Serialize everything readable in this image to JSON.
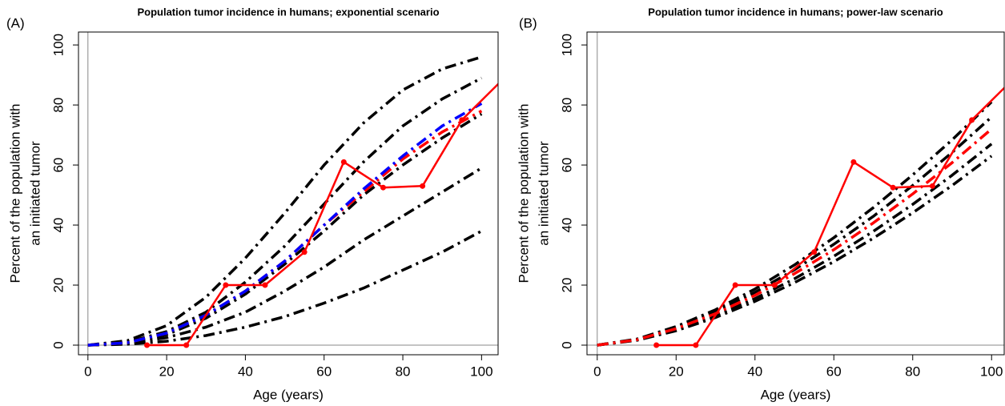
{
  "chart_data": [
    {
      "type": "line",
      "panel_label": "(A)",
      "title": "Population tumor incidence in humans; exponential scenario",
      "xlabel": "Age (years)",
      "ylabel": [
        "Percent of the population with",
        "an initiated tumor"
      ],
      "xlim": [
        -2.4,
        104.2
      ],
      "ylim": [
        -3.2,
        104.3
      ],
      "xticks": [
        0,
        20,
        40,
        60,
        80,
        100
      ],
      "yticks": [
        0,
        20,
        40,
        60,
        80,
        100
      ],
      "reference_lines": {
        "x": 0,
        "y": 0
      },
      "series": [
        {
          "color": "#000000",
          "linestyle": "dashdot",
          "x": [
            0,
            10,
            20,
            30,
            40,
            50,
            60,
            70,
            80,
            90,
            100
          ],
          "values": [
            0,
            1.5,
            6.5,
            16,
            29,
            44,
            60,
            74,
            85,
            92,
            96
          ]
        },
        {
          "color": "#000000",
          "linestyle": "dashdot",
          "x": [
            0,
            10,
            20,
            30,
            40,
            50,
            60,
            70,
            80,
            90,
            100
          ],
          "values": [
            0,
            1,
            4.5,
            11,
            21,
            33,
            47,
            61,
            73,
            82,
            89
          ]
        },
        {
          "color": "#000000",
          "linestyle": "dashdot",
          "x": [
            0,
            10,
            20,
            30,
            40,
            50,
            60,
            70,
            80,
            90,
            100
          ],
          "values": [
            0,
            0.8,
            3.5,
            9,
            17,
            27,
            38,
            50,
            60,
            69,
            77
          ]
        },
        {
          "color": "#000000",
          "linestyle": "dashdot",
          "x": [
            0,
            10,
            20,
            30,
            40,
            50,
            60,
            70,
            80,
            90,
            100
          ],
          "values": [
            0,
            0.5,
            2.5,
            6,
            11,
            18,
            26,
            35,
            43,
            51,
            59
          ]
        },
        {
          "color": "#000000",
          "linestyle": "dashdot",
          "x": [
            0,
            10,
            20,
            30,
            40,
            50,
            60,
            70,
            80,
            90,
            100
          ],
          "values": [
            0,
            0.3,
            1.3,
            3.2,
            6,
            9.5,
            14,
            19,
            25,
            31,
            38
          ]
        },
        {
          "color": "#ff0000",
          "linestyle": "dashdot",
          "x": [
            0,
            10,
            20,
            30,
            40,
            50,
            60,
            70,
            80,
            90,
            100
          ],
          "values": [
            0,
            0.8,
            4,
            10,
            18,
            28,
            40,
            51,
            62,
            71,
            78
          ]
        },
        {
          "color": "#0000ff",
          "linestyle": "dashdot",
          "x": [
            0,
            10,
            20,
            30,
            40,
            50,
            60,
            70,
            80,
            90,
            100
          ],
          "values": [
            0,
            0.8,
            4,
            10,
            18,
            28,
            40,
            52,
            63,
            73,
            80.5
          ]
        },
        {
          "color": "#ff0000",
          "linestyle": "solid",
          "marker": true,
          "x": [
            15,
            25,
            35,
            45,
            55,
            65,
            75,
            85,
            95,
            105
          ],
          "values": [
            0,
            0,
            20,
            20,
            31,
            61,
            52.5,
            53,
            75,
            88
          ]
        }
      ]
    },
    {
      "type": "line",
      "panel_label": "(B)",
      "title": "Population tumor incidence in humans; power-law scenario",
      "xlabel": "Age (years)",
      "ylabel": [
        "Percent of the population with",
        "an initiated tumor"
      ],
      "xlim": [
        -2.6,
        103.2
      ],
      "ylim": [
        -3.2,
        104.3
      ],
      "xticks": [
        0,
        20,
        40,
        60,
        80,
        100
      ],
      "yticks": [
        0,
        20,
        40,
        60,
        80,
        100
      ],
      "reference_lines": {
        "x": 0,
        "y": 0
      },
      "series": [
        {
          "color": "#000000",
          "linestyle": "dashdot",
          "x": [
            0,
            10,
            20,
            30,
            40,
            50,
            60,
            70,
            80,
            90,
            100
          ],
          "values": [
            0,
            2.0,
            6.2,
            11.8,
            18.7,
            26.7,
            35.8,
            45.8,
            56.7,
            68.4,
            81
          ]
        },
        {
          "color": "#000000",
          "linestyle": "dashdot",
          "x": [
            0,
            10,
            20,
            30,
            40,
            50,
            60,
            70,
            80,
            90,
            100
          ],
          "values": [
            0,
            1.9,
            5.8,
            11.1,
            17.6,
            25.1,
            33.6,
            42.9,
            53.2,
            64.2,
            76
          ]
        },
        {
          "color": "#000000",
          "linestyle": "dashdot",
          "x": [
            0,
            10,
            20,
            30,
            40,
            50,
            60,
            70,
            80,
            90,
            100
          ],
          "values": [
            0,
            1.7,
            5.1,
            9.8,
            15.5,
            22.1,
            29.6,
            37.9,
            46.9,
            56.6,
            67
          ]
        },
        {
          "color": "#000000",
          "linestyle": "dashdot",
          "x": [
            0,
            10,
            20,
            30,
            40,
            50,
            60,
            70,
            80,
            90,
            100
          ],
          "values": [
            0,
            1.6,
            4.8,
            9.2,
            14.6,
            20.8,
            27.8,
            35.6,
            44.1,
            53.2,
            63
          ]
        },
        {
          "color": "#ff0000",
          "linestyle": "dashdot",
          "x": [
            0,
            10,
            20,
            30,
            40,
            50,
            60,
            70,
            80,
            90,
            100
          ],
          "values": [
            0,
            1.8,
            5.5,
            10.5,
            16.6,
            23.8,
            31.8,
            40.7,
            50.4,
            60.8,
            72
          ]
        },
        {
          "color": "#ff0000",
          "linestyle": "solid",
          "marker": true,
          "x": [
            15,
            25,
            35,
            45,
            55,
            65,
            75,
            85,
            95,
            105
          ],
          "values": [
            0,
            0,
            20,
            20,
            31,
            61,
            52.5,
            53,
            75,
            88
          ]
        }
      ]
    }
  ]
}
